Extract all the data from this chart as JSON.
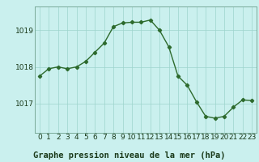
{
  "x": [
    0,
    1,
    2,
    3,
    4,
    5,
    6,
    7,
    8,
    9,
    10,
    11,
    12,
    13,
    14,
    15,
    16,
    17,
    18,
    19,
    20,
    21,
    22,
    23
  ],
  "y": [
    1017.75,
    1017.95,
    1018.0,
    1017.95,
    1018.0,
    1018.15,
    1018.4,
    1018.65,
    1019.1,
    1019.2,
    1019.22,
    1019.22,
    1019.28,
    1019.0,
    1018.55,
    1017.75,
    1017.5,
    1017.05,
    1016.65,
    1016.6,
    1016.65,
    1016.9,
    1017.1,
    1017.08
  ],
  "line_color": "#2d6a2d",
  "marker": "D",
  "marker_size": 2.2,
  "bg_color": "#caf0ee",
  "grid_color": "#9dd4cc",
  "xlabel": "Graphe pression niveau de la mer (hPa)",
  "xlabel_fontsize": 7.5,
  "xlabel_bg": "#5fa080",
  "ylabel_ticks": [
    1017,
    1018,
    1019
  ],
  "xtick_labels": [
    "0",
    "1",
    "2",
    "3",
    "4",
    "5",
    "6",
    "7",
    "8",
    "9",
    "10",
    "11",
    "12",
    "13",
    "14",
    "15",
    "16",
    "17",
    "18",
    "19",
    "20",
    "21",
    "22",
    "23"
  ],
  "ylim": [
    1016.2,
    1019.65
  ],
  "xlim": [
    -0.5,
    23.5
  ],
  "tick_fontsize": 6.5,
  "line_width": 1.0,
  "xlabel_color": "#1a3a1a"
}
